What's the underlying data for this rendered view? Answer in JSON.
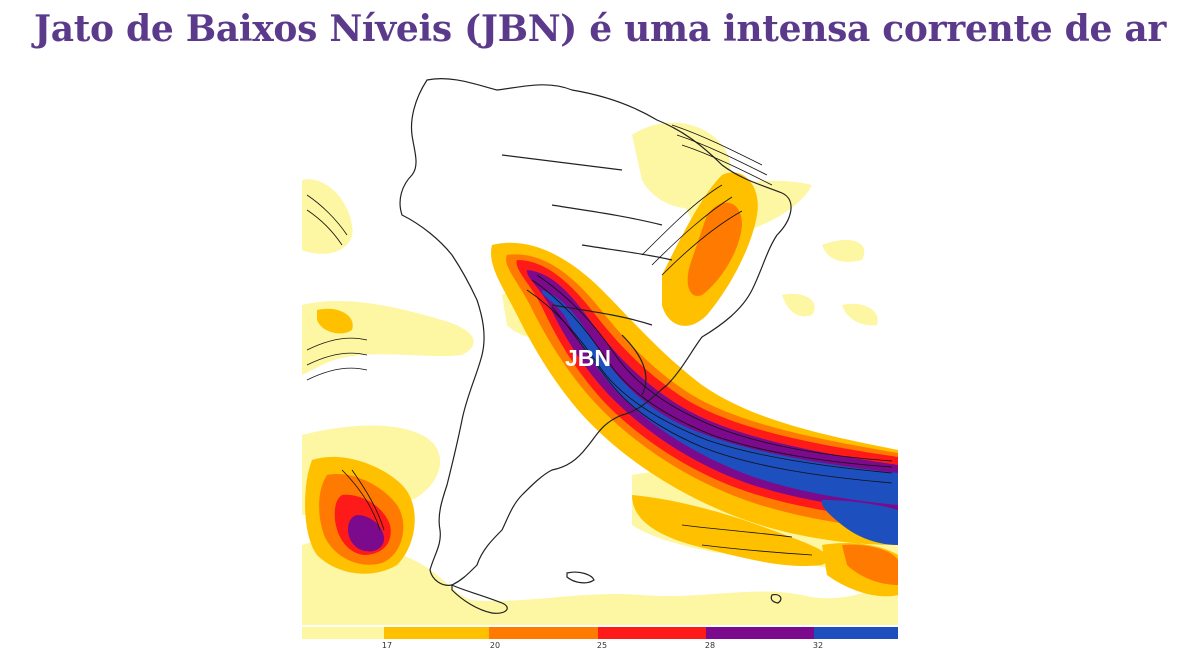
{
  "title": "Jato de Baixos Níveis (JBN) é uma intensa corrente de ar",
  "map": {
    "label": "JBN",
    "colors": {
      "band1": "#fdf6a3",
      "band2": "#ffc000",
      "band3": "#ff7a00",
      "band4": "#ff1a1a",
      "band5": "#7b0a8c",
      "band6": "#1e4fbf",
      "land_outline": "#222222",
      "vectors": "#111111"
    }
  },
  "colorbar": {
    "ticks": [
      "17",
      "20",
      "25",
      "28",
      "32"
    ],
    "colors": [
      "#fdf6a3",
      "#ffc000",
      "#ff7a00",
      "#ff1a1a",
      "#7b0a8c",
      "#1e4fbf"
    ]
  }
}
